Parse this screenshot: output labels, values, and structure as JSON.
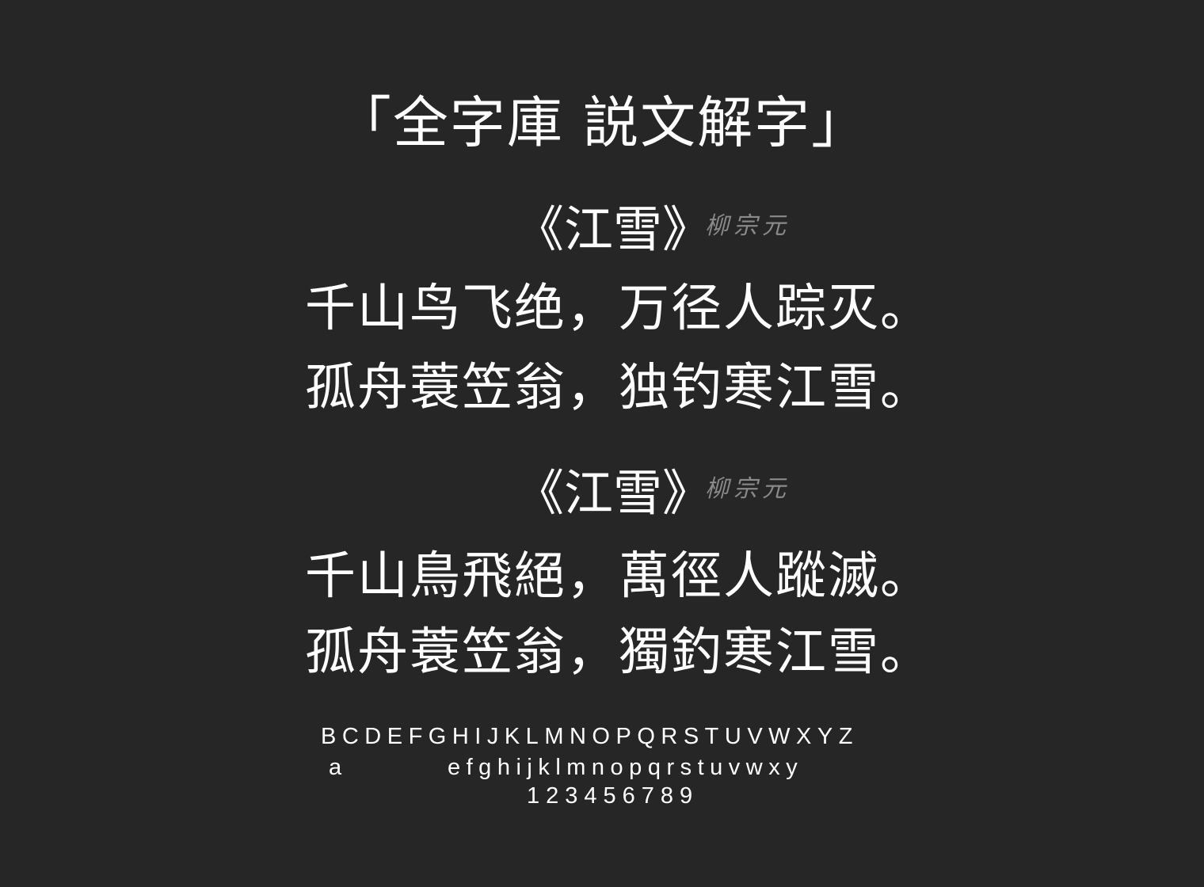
{
  "header": {
    "title": "「全字庫 説文解字」"
  },
  "sample_1": {
    "poem_title": "《江雪》",
    "author": "柳宗元",
    "lines": [
      "千山鸟飞绝，万径人踪灭。",
      "孤舟蓑笠翁，独钓寒江雪。"
    ]
  },
  "sample_2": {
    "poem_title": "《江雪》",
    "author": "柳宗元",
    "lines": [
      "千山鳥飛絕，萬徑人蹤滅。",
      "孤舟蓑笠翁，獨釣寒江雪。"
    ]
  },
  "alphabet": {
    "uppercase": "BCDEFGHIJKLMNOPQRSTUVWXYZ",
    "lowercase_a": "a",
    "lowercase_rest": "efghijklmnopqrstuvwxy",
    "digits": "123456789"
  },
  "colors": {
    "background": "#262626",
    "text": "#ffffff",
    "author": "#8a8a8a"
  }
}
